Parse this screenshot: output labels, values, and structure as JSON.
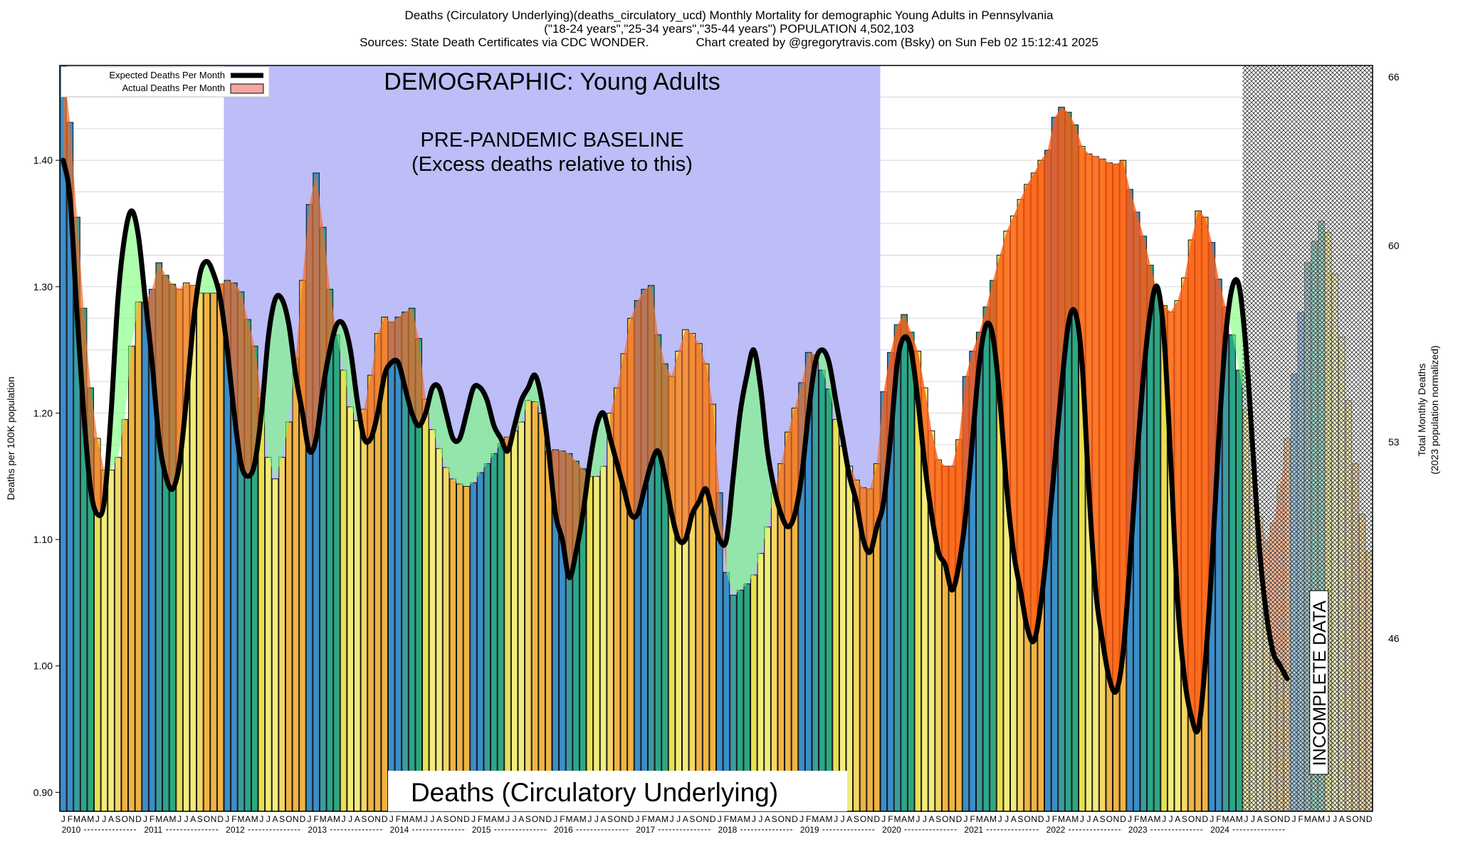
{
  "chart_data": {
    "type": "bar",
    "title_lines": [
      "Deaths (Circulatory Underlying)(deaths_circulatory_ucd) Monthly Mortality for demographic Young Adults in Pennsylvania",
      "(\"18-24 years\",\"25-34 years\",\"35-44 years\") POPULATION 4,502,103",
      "Sources: State Death Certificates via CDC WONDER.              Chart created by @gregorytravis.com (Bsky) on Sun Feb 02 15:12:41 2025"
    ],
    "ylabel": "Deaths per 100K population",
    "ylabel_right_lines": [
      "Total Monthly Deaths",
      "(2023 population normalized)"
    ],
    "ylim": [
      0.885,
      1.475
    ],
    "yticks": [
      "0.90",
      "1.00",
      "1.10",
      "1.20",
      "1.30",
      "1.40"
    ],
    "yticks_right": [
      {
        "label": "46",
        "value": 1.0217
      },
      {
        "label": "53",
        "value": 1.1772
      },
      {
        "label": "60",
        "value": 1.3326
      },
      {
        "label": "66",
        "value": 1.4659
      }
    ],
    "legend": {
      "position": "top-left",
      "entries": [
        "Expected Deaths Per Month",
        "Actual Deaths Per Month"
      ]
    },
    "annotations": {
      "demographic": "DEMOGRAPHIC: Young Adults",
      "baseline_line1": "PRE-PANDEMIC BASELINE",
      "baseline_line2": "(Excess deaths relative to this)",
      "cause_label": "Deaths (Circulatory Underlying)",
      "incomplete": "INCOMPLETE DATA"
    },
    "baseline_period": [
      "2012-01",
      "2019-12"
    ],
    "incomplete_from": "2024-06",
    "month_letters": [
      "J",
      "F",
      "M",
      "A",
      "M",
      "J",
      "J",
      "A",
      "S",
      "O",
      "N",
      "D"
    ],
    "years": [
      "2010",
      "2011",
      "2012",
      "2013",
      "2014",
      "2015",
      "2016",
      "2017",
      "2018",
      "2019",
      "2020",
      "2021",
      "2022",
      "2023",
      "2024"
    ],
    "x_start": "2010-01",
    "actual": [
      1.475,
      1.43,
      1.355,
      1.283,
      1.22,
      1.18,
      1.155,
      1.155,
      1.165,
      1.195,
      1.253,
      1.288,
      1.288,
      1.298,
      1.319,
      1.309,
      1.302,
      1.298,
      1.303,
      1.301,
      1.295,
      1.295,
      1.295,
      1.302,
      1.305,
      1.303,
      1.296,
      1.274,
      1.253,
      1.212,
      1.165,
      1.148,
      1.165,
      1.193,
      1.243,
      1.305,
      1.365,
      1.39,
      1.347,
      1.298,
      1.262,
      1.234,
      1.205,
      1.194,
      1.203,
      1.23,
      1.263,
      1.276,
      1.272,
      1.276,
      1.28,
      1.283,
      1.259,
      1.211,
      1.187,
      1.172,
      1.157,
      1.148,
      1.144,
      1.142,
      1.145,
      1.153,
      1.16,
      1.168,
      1.176,
      1.181,
      1.186,
      1.193,
      1.21,
      1.209,
      1.2,
      1.17,
      1.171,
      1.17,
      1.168,
      1.162,
      1.156,
      1.15,
      1.15,
      1.158,
      1.2,
      1.22,
      1.247,
      1.275,
      1.289,
      1.298,
      1.301,
      1.262,
      1.239,
      1.229,
      1.249,
      1.266,
      1.263,
      1.255,
      1.239,
      1.207,
      1.137,
      1.074,
      1.056,
      1.06,
      1.065,
      1.072,
      1.089,
      1.11,
      1.137,
      1.16,
      1.185,
      1.204,
      1.224,
      1.248,
      1.246,
      1.234,
      1.219,
      1.195,
      1.174,
      1.158,
      1.147,
      1.141,
      1.14,
      1.16,
      1.217,
      1.248,
      1.27,
      1.278,
      1.264,
      1.249,
      1.22,
      1.186,
      1.163,
      1.158,
      1.158,
      1.179,
      1.229,
      1.249,
      1.264,
      1.284,
      1.305,
      1.325,
      1.344,
      1.356,
      1.369,
      1.381,
      1.39,
      1.4,
      1.408,
      1.434,
      1.442,
      1.438,
      1.428,
      1.411,
      1.405,
      1.403,
      1.401,
      1.398,
      1.397,
      1.4,
      1.377,
      1.359,
      1.34,
      1.317,
      1.296,
      1.285,
      1.28,
      1.289,
      1.307,
      1.337,
      1.36,
      1.355,
      1.335,
      1.306,
      1.284,
      1.262,
      1.234,
      1.203,
      1.155,
      1.118,
      1.098,
      1.113,
      1.143,
      1.18,
      1.231,
      1.28,
      1.319,
      1.336,
      1.352,
      1.343,
      1.31,
      1.26,
      1.21,
      1.16,
      1.12,
      1.09
    ],
    "expected": [
      1.4,
      1.37,
      1.28,
      1.2,
      1.14,
      1.12,
      1.13,
      1.2,
      1.29,
      1.34,
      1.36,
      1.34,
      1.29,
      1.24,
      1.18,
      1.15,
      1.14,
      1.16,
      1.21,
      1.27,
      1.31,
      1.32,
      1.31,
      1.29,
      1.25,
      1.2,
      1.16,
      1.15,
      1.16,
      1.2,
      1.26,
      1.29,
      1.29,
      1.27,
      1.23,
      1.2,
      1.17,
      1.18,
      1.22,
      1.25,
      1.27,
      1.27,
      1.25,
      1.21,
      1.18,
      1.18,
      1.2,
      1.23,
      1.24,
      1.24,
      1.22,
      1.2,
      1.19,
      1.2,
      1.22,
      1.22,
      1.2,
      1.18,
      1.18,
      1.2,
      1.22,
      1.22,
      1.21,
      1.19,
      1.18,
      1.17,
      1.19,
      1.21,
      1.22,
      1.23,
      1.21,
      1.17,
      1.12,
      1.1,
      1.07,
      1.09,
      1.12,
      1.16,
      1.19,
      1.2,
      1.18,
      1.16,
      1.14,
      1.12,
      1.12,
      1.14,
      1.16,
      1.17,
      1.15,
      1.12,
      1.1,
      1.1,
      1.12,
      1.13,
      1.14,
      1.12,
      1.1,
      1.1,
      1.15,
      1.2,
      1.23,
      1.25,
      1.22,
      1.17,
      1.14,
      1.12,
      1.11,
      1.12,
      1.15,
      1.2,
      1.24,
      1.25,
      1.24,
      1.21,
      1.18,
      1.15,
      1.13,
      1.1,
      1.09,
      1.11,
      1.13,
      1.18,
      1.24,
      1.26,
      1.25,
      1.21,
      1.16,
      1.12,
      1.09,
      1.08,
      1.06,
      1.08,
      1.12,
      1.18,
      1.24,
      1.27,
      1.26,
      1.21,
      1.14,
      1.09,
      1.06,
      1.03,
      1.02,
      1.05,
      1.1,
      1.16,
      1.22,
      1.27,
      1.28,
      1.24,
      1.14,
      1.06,
      1.02,
      0.99,
      0.98,
      1.01,
      1.08,
      1.16,
      1.23,
      1.28,
      1.3,
      1.26,
      1.16,
      1.05,
      0.99,
      0.96,
      0.95,
      1.0,
      1.08,
      1.18,
      1.26,
      1.3,
      1.3,
      1.25,
      1.17,
      1.09,
      1.04,
      1.01,
      1.0,
      0.99
    ]
  }
}
